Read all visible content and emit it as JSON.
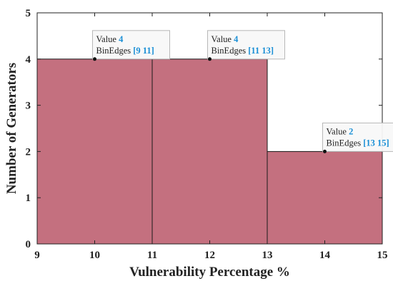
{
  "chart_data": {
    "type": "bar",
    "xlabel": "Vulnerability Percentage %",
    "ylabel": "Number of Generators",
    "xlim": [
      9,
      15
    ],
    "ylim": [
      0,
      5
    ],
    "x_ticks": [
      9,
      10,
      11,
      12,
      13,
      14,
      15
    ],
    "y_ticks": [
      0,
      1,
      2,
      3,
      4,
      5
    ],
    "bins": [
      {
        "edges": [
          9,
          11
        ],
        "value": 4
      },
      {
        "edges": [
          11,
          13
        ],
        "value": 4
      },
      {
        "edges": [
          13,
          15
        ],
        "value": 2
      }
    ],
    "grid": false,
    "bar_color": "#c4707f",
    "datatips": [
      {
        "x": 10,
        "y": 4,
        "value_label": "Value",
        "value": "4",
        "edges_label": "BinEdges",
        "edges": "[9 11]"
      },
      {
        "x": 12,
        "y": 4,
        "value_label": "Value",
        "value": "4",
        "edges_label": "BinEdges",
        "edges": "[11 13]"
      },
      {
        "x": 14,
        "y": 2,
        "value_label": "Value",
        "value": "2",
        "edges_label": "BinEdges",
        "edges": "[13 15]"
      }
    ]
  }
}
